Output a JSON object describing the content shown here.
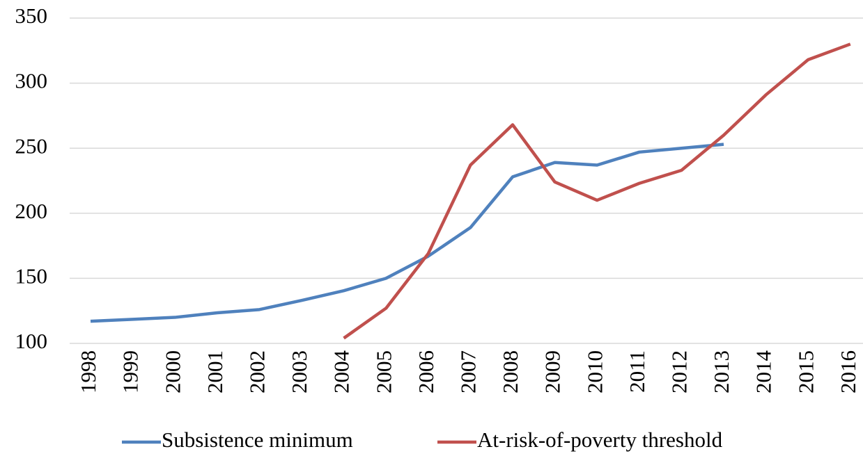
{
  "chart_data": {
    "type": "line",
    "categories": [
      "1998",
      "1999",
      "2000",
      "2001",
      "2002",
      "2003",
      "2004",
      "2005",
      "2006",
      "2007",
      "2008",
      "2009",
      "2010",
      "2011",
      "2012",
      "2013",
      "2014",
      "2015",
      "2016"
    ],
    "series": [
      {
        "name": "Subsistence minimum",
        "color": "#4f81bd",
        "values": [
          117,
          118.5,
          120,
          123.5,
          126,
          133,
          140.5,
          150,
          167,
          189,
          228,
          239,
          237,
          247,
          250,
          253,
          null,
          null,
          null
        ]
      },
      {
        "name": "At-risk-of-poverty threshold",
        "color": "#c0504d",
        "values": [
          null,
          null,
          null,
          null,
          null,
          null,
          104,
          127,
          169,
          237,
          268,
          224,
          210,
          223,
          233,
          260,
          291,
          318,
          330
        ]
      }
    ],
    "ylim": [
      100,
      350
    ],
    "yticks": [
      100,
      150,
      200,
      250,
      300,
      350
    ],
    "grid": true,
    "legend": "bottom"
  }
}
